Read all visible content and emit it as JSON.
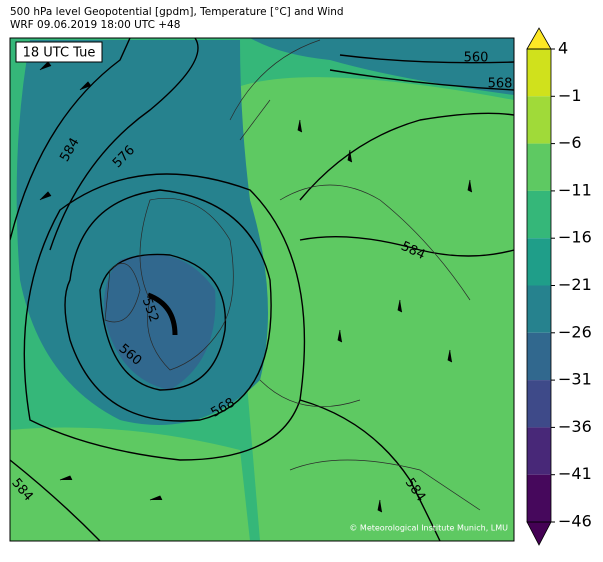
{
  "header": {
    "title": "500 hPa level Geopotential [gpdm], Temperature [°C] and Wind",
    "subtitle": "WRF 09.06.2019 18:00 UTC +48"
  },
  "map": {
    "time_label": "18 UTC Tue",
    "credit": "© Meteorological Institute Munich, LMU",
    "contour_labels": [
      "584",
      "576",
      "560",
      "568",
      "584",
      "552",
      "560",
      "568",
      "584",
      "584"
    ]
  },
  "colorbar": {
    "lim": [
      -46,
      4
    ],
    "ticks": [
      {
        "value": 4,
        "label": "4"
      },
      {
        "value": -1,
        "label": "−1"
      },
      {
        "value": -6,
        "label": "−6"
      },
      {
        "value": -11,
        "label": "−11"
      },
      {
        "value": -16,
        "label": "−16"
      },
      {
        "value": -21,
        "label": "−21"
      },
      {
        "value": -26,
        "label": "−26"
      },
      {
        "value": -31,
        "label": "−31"
      },
      {
        "value": -36,
        "label": "−36"
      },
      {
        "value": -41,
        "label": "−41"
      },
      {
        "value": -46,
        "label": "−46"
      }
    ],
    "colors": [
      "#d0e11c",
      "#a0da39",
      "#5ec962",
      "#35b779",
      "#1f9e89",
      "#26828e",
      "#31688e",
      "#3e4a89",
      "#482878",
      "#46085c"
    ],
    "extend_colors": [
      "#fde725",
      "#440154"
    ]
  }
}
